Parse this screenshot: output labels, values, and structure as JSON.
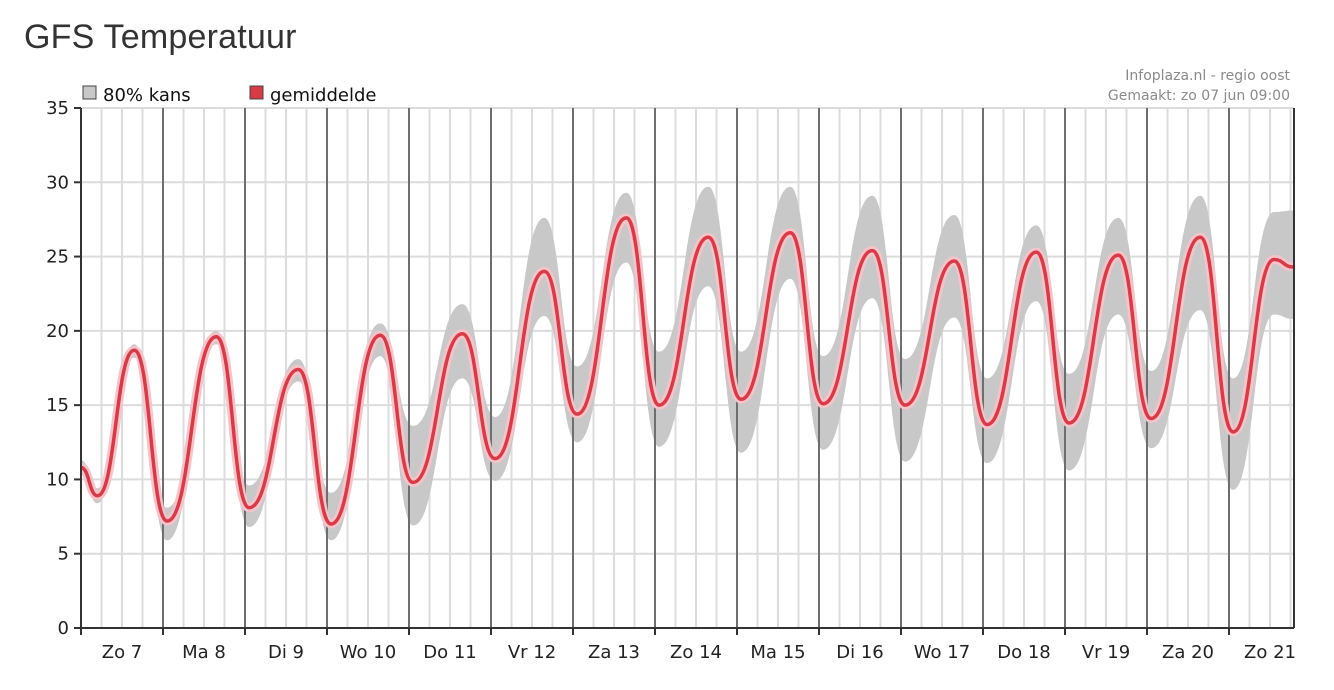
{
  "page": {
    "title": "GFS Temperatuur",
    "source": "Infoplaza.nl - regio oost",
    "created": "Gemaakt: zo 07 jun 09:00"
  },
  "legend": {
    "band_label": "80% kans",
    "line_label": "gemiddelde"
  },
  "colors": {
    "band": "#c8c8c8",
    "line": "#d93a48",
    "line_halo": "#f6c3c8",
    "day_separator": "#6e6e6e",
    "grid": "#dcdcdc"
  },
  "chart_data": {
    "type": "area",
    "title": "GFS Temperatuur",
    "xlabel": "",
    "ylabel": "",
    "ylim": [
      0,
      35
    ],
    "yticks": [
      0,
      5,
      10,
      15,
      20,
      25,
      30,
      35
    ],
    "grid": true,
    "legend_position": "top-left",
    "categories": [
      "Zo 7",
      "Ma 8",
      "Di 9",
      "Wo 10",
      "Do 11",
      "Vr 12",
      "Za 13",
      "Zo 14",
      "Ma 15",
      "Di 16",
      "Wo 17",
      "Do 18",
      "Vr 19",
      "Za 20",
      "Zo 21"
    ],
    "x_unit": "days since 2020-06-07 00:00",
    "series": [
      {
        "name": "gemiddelde",
        "x": [
          0.0,
          0.2,
          0.65,
          1.05,
          1.65,
          2.05,
          2.65,
          3.05,
          3.65,
          4.05,
          4.65,
          5.05,
          5.65,
          6.05,
          6.65,
          7.05,
          7.65,
          8.05,
          8.65,
          9.05,
          9.65,
          10.05,
          10.65,
          11.05,
          11.65,
          12.05,
          12.65,
          13.05,
          13.65,
          14.05,
          14.55,
          14.78
        ],
        "values": [
          10.8,
          8.9,
          18.7,
          7.2,
          19.6,
          8.1,
          17.4,
          7.0,
          19.7,
          9.8,
          19.8,
          11.4,
          24.0,
          14.4,
          27.6,
          15.0,
          26.3,
          15.4,
          26.6,
          15.1,
          25.4,
          15.0,
          24.7,
          13.7,
          25.3,
          13.8,
          25.1,
          14.1,
          26.3,
          13.2,
          24.8,
          24.3
        ]
      },
      {
        "name": "80% kans",
        "x": [
          0.0,
          0.2,
          0.65,
          1.05,
          1.65,
          2.05,
          2.65,
          3.05,
          3.65,
          4.05,
          4.65,
          5.05,
          5.65,
          6.05,
          6.65,
          7.05,
          7.65,
          8.05,
          8.65,
          9.05,
          9.65,
          10.05,
          10.65,
          11.05,
          11.65,
          12.05,
          12.65,
          13.05,
          13.65,
          14.05,
          14.55,
          14.78
        ],
        "upper": [
          11.3,
          9.4,
          19.1,
          8.1,
          20.0,
          9.6,
          18.1,
          9.1,
          20.5,
          13.6,
          21.8,
          14.2,
          27.6,
          17.6,
          29.3,
          18.6,
          29.7,
          18.6,
          29.7,
          18.3,
          29.1,
          18.1,
          27.8,
          16.8,
          27.1,
          17.1,
          27.6,
          17.3,
          29.1,
          16.8,
          28.0,
          28.1
        ],
        "lower": [
          10.3,
          8.4,
          18.2,
          5.9,
          19.1,
          6.8,
          16.6,
          5.9,
          18.3,
          6.9,
          16.8,
          9.9,
          21.0,
          12.5,
          24.6,
          12.2,
          23.0,
          11.8,
          23.5,
          12.0,
          22.2,
          11.2,
          20.9,
          11.1,
          22.0,
          10.6,
          21.1,
          12.1,
          21.4,
          9.3,
          21.1,
          20.8
        ]
      }
    ]
  }
}
